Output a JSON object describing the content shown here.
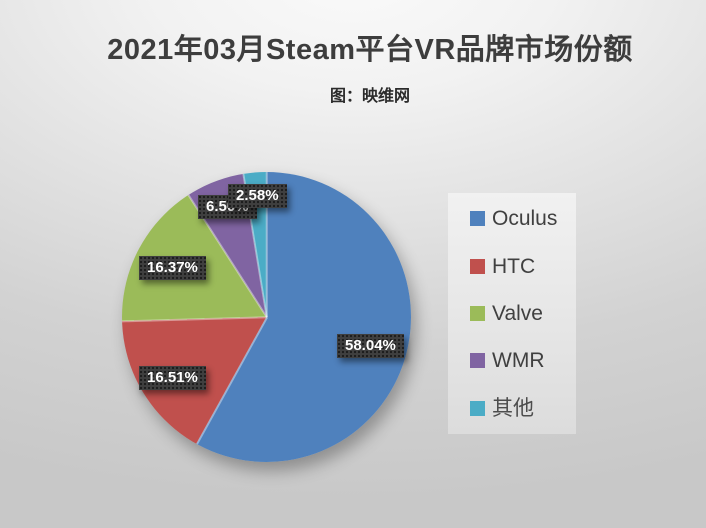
{
  "header": {
    "title": "2021年03月Steam平台VR品牌市场份额",
    "subtitle": "图：映维网"
  },
  "chart_data": {
    "type": "pie",
    "title": "2021年03月Steam平台VR品牌市场份额",
    "source_note": "图：映维网",
    "unit": "percent",
    "start_angle_deg": 0,
    "direction": "clockwise",
    "legend_position": "right",
    "categories": [
      "Oculus",
      "HTC",
      "Valve",
      "WMR",
      "其他"
    ],
    "values": [
      58.04,
      16.51,
      16.37,
      6.5,
      2.58
    ],
    "data_labels": [
      "58.04%",
      "16.51%",
      "16.37%",
      "6.50%",
      "2.58%"
    ],
    "colors": [
      "#4F81BD",
      "#C0504D",
      "#9BBB59",
      "#8064A2",
      "#4BACC6"
    ]
  },
  "legend": {
    "items": [
      {
        "label": "Oculus",
        "color": "#4F81BD"
      },
      {
        "label": "HTC",
        "color": "#C0504D"
      },
      {
        "label": "Valve",
        "color": "#9BBB59"
      },
      {
        "label": "WMR",
        "color": "#8064A2"
      },
      {
        "label": "其他",
        "color": "#4BACC6"
      }
    ]
  },
  "theme": {
    "label_box_bg": "#3F3F3F",
    "label_text_color": "#FFFFFF",
    "title_color": "#3D3D3D",
    "legend_text_color": "#404040",
    "background_top": "#FAFAFA",
    "background_bottom": "#C8C8C8"
  }
}
